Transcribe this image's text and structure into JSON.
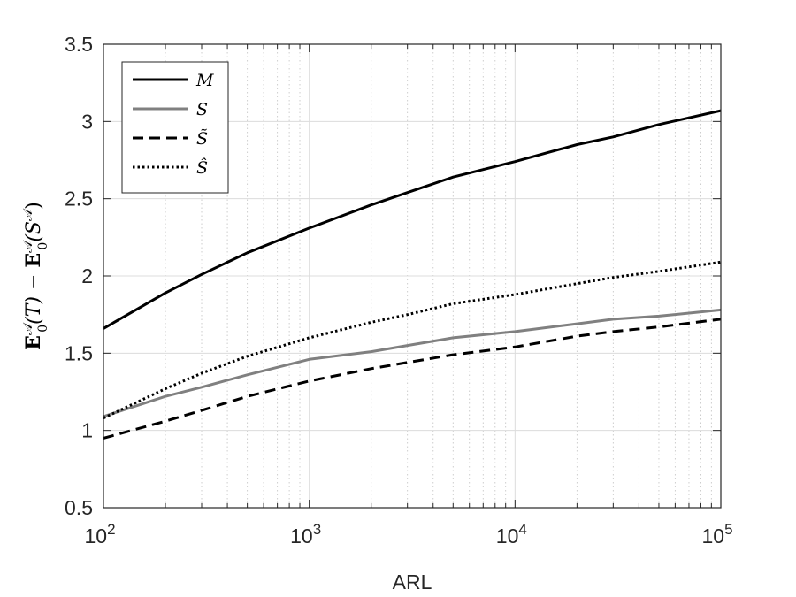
{
  "chart_data": {
    "type": "line",
    "xscale": "log",
    "xlim": [
      100,
      100000
    ],
    "ylim": [
      0.5,
      3.5
    ],
    "xlabel": "ARL",
    "ylabel": {
      "bold1": "E",
      "sup1": "𝒜",
      "sub1": "0",
      "arg1": "(T)",
      "minus": " − ",
      "bold2": "E",
      "sup2": "𝒜",
      "sub2": "0",
      "arg2": "(S",
      "arg2sup": "𝒜",
      "arg2close": ")"
    },
    "x_ticks": [
      {
        "value": 100,
        "base": "10",
        "exp": "2"
      },
      {
        "value": 1000,
        "base": "10",
        "exp": "3"
      },
      {
        "value": 10000,
        "base": "10",
        "exp": "4"
      },
      {
        "value": 100000,
        "base": "10",
        "exp": "5"
      }
    ],
    "y_ticks": [
      {
        "value": 0.5,
        "label": "0.5"
      },
      {
        "value": 1,
        "label": "1"
      },
      {
        "value": 1.5,
        "label": "1.5"
      },
      {
        "value": 2,
        "label": "2"
      },
      {
        "value": 2.5,
        "label": "2.5"
      },
      {
        "value": 3,
        "label": "3"
      },
      {
        "value": 3.5,
        "label": "3.5"
      }
    ],
    "grid": true,
    "minor_grid": true,
    "legend_position": "top-left",
    "x": [
      100,
      200,
      300,
      500,
      1000,
      2000,
      3000,
      5000,
      10000,
      20000,
      30000,
      50000,
      100000
    ],
    "series": [
      {
        "name": "M",
        "color": "#000000",
        "style": "solid",
        "values": [
          1.66,
          1.89,
          2.01,
          2.15,
          2.31,
          2.46,
          2.54,
          2.64,
          2.74,
          2.85,
          2.9,
          2.98,
          3.07
        ]
      },
      {
        "name": "S",
        "color": "#808080",
        "style": "solid",
        "values": [
          1.09,
          1.22,
          1.28,
          1.36,
          1.46,
          1.51,
          1.55,
          1.6,
          1.64,
          1.69,
          1.72,
          1.74,
          1.78
        ]
      },
      {
        "name": "S̃",
        "color": "#000000",
        "style": "dashed",
        "values": [
          0.95,
          1.06,
          1.13,
          1.22,
          1.32,
          1.4,
          1.44,
          1.49,
          1.54,
          1.61,
          1.64,
          1.67,
          1.72
        ]
      },
      {
        "name": "Ŝ",
        "color": "#000000",
        "style": "dotted",
        "values": [
          1.08,
          1.27,
          1.37,
          1.48,
          1.6,
          1.7,
          1.75,
          1.82,
          1.88,
          1.95,
          1.99,
          2.03,
          2.09
        ]
      }
    ]
  }
}
